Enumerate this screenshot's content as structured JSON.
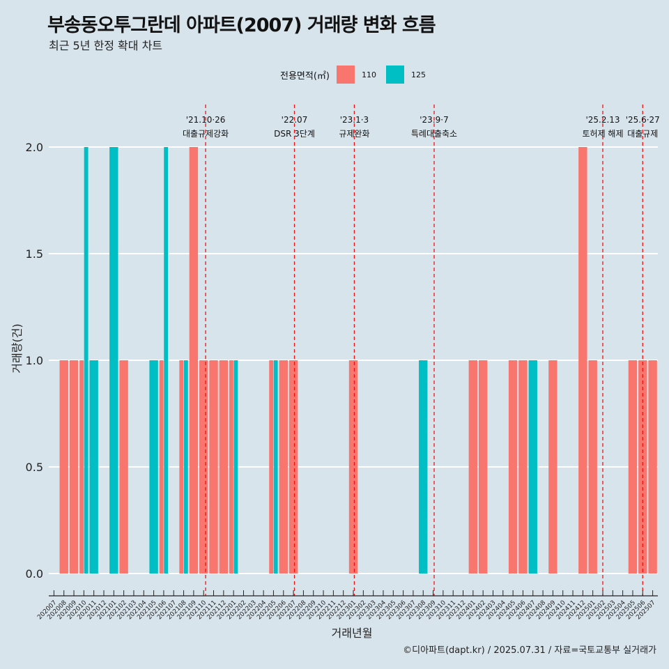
{
  "header": {
    "title": "부송동오투그란데 아파트(2007) 거래량 변화 흐름",
    "subtitle": "최근 5년 한정 확대 차트"
  },
  "legend": {
    "title": "전용면적(㎡)",
    "items": [
      {
        "label": "110",
        "color": "#f8766d"
      },
      {
        "label": "125",
        "color": "#00bfc4"
      }
    ]
  },
  "footer": {
    "credit": "©디아파트(dapt.kr) / 2025.07.31 / 자료=국토교통부 실거래가"
  },
  "chart_data": {
    "type": "bar",
    "title": "부송동오투그란데 아파트(2007) 거래량 변화 흐름",
    "xlabel": "거래년월",
    "ylabel": "거래량(건)",
    "ylim": [
      -0.18,
      2.2
    ],
    "yticks": [
      0.0,
      0.5,
      1.0,
      1.5,
      2.0
    ],
    "ytick_labels": [
      "0.0",
      "0.5",
      "1.0",
      "1.5",
      "2.0"
    ],
    "categories": [
      "202007",
      "202008",
      "202009",
      "202010",
      "202011",
      "202012",
      "202101",
      "202102",
      "202103",
      "202104",
      "202105",
      "202106",
      "202107",
      "202108",
      "202109",
      "202110",
      "202111",
      "202112",
      "202201",
      "202202",
      "202203",
      "202204",
      "202205",
      "202206",
      "202207",
      "202208",
      "202209",
      "202210",
      "202211",
      "202212",
      "202301",
      "202302",
      "202303",
      "202304",
      "202305",
      "202306",
      "202307",
      "202308",
      "202309",
      "202310",
      "202311",
      "202312",
      "202401",
      "202402",
      "202403",
      "202404",
      "202405",
      "202406",
      "202407",
      "202408",
      "202409",
      "202410",
      "202411",
      "202412",
      "202501",
      "202502",
      "202503",
      "202504",
      "202505",
      "202506",
      "202507"
    ],
    "bars": [
      {
        "month": "202008",
        "series": "110",
        "value": 1
      },
      {
        "month": "202009",
        "series": "110",
        "value": 1
      },
      {
        "month": "202010",
        "series": "110",
        "value": 1
      },
      {
        "month": "202010",
        "series": "125",
        "value": 2
      },
      {
        "month": "202011",
        "series": "125",
        "value": 1
      },
      {
        "month": "202101",
        "series": "125",
        "value": 2
      },
      {
        "month": "202102",
        "series": "110",
        "value": 1
      },
      {
        "month": "202105",
        "series": "125",
        "value": 1
      },
      {
        "month": "202106",
        "series": "110",
        "value": 1
      },
      {
        "month": "202106",
        "series": "125",
        "value": 2
      },
      {
        "month": "202108",
        "series": "110",
        "value": 1
      },
      {
        "month": "202108",
        "series": "125",
        "value": 1
      },
      {
        "month": "202109",
        "series": "110",
        "value": 2
      },
      {
        "month": "202110",
        "series": "110",
        "value": 1
      },
      {
        "month": "202111",
        "series": "110",
        "value": 1
      },
      {
        "month": "202112",
        "series": "110",
        "value": 1
      },
      {
        "month": "202201",
        "series": "110",
        "value": 1
      },
      {
        "month": "202201",
        "series": "125",
        "value": 1
      },
      {
        "month": "202205",
        "series": "110",
        "value": 1
      },
      {
        "month": "202205",
        "series": "125",
        "value": 1
      },
      {
        "month": "202206",
        "series": "110",
        "value": 1
      },
      {
        "month": "202207",
        "series": "110",
        "value": 1
      },
      {
        "month": "202301",
        "series": "110",
        "value": 1
      },
      {
        "month": "202308",
        "series": "125",
        "value": 1
      },
      {
        "month": "202401",
        "series": "110",
        "value": 1
      },
      {
        "month": "202402",
        "series": "110",
        "value": 1
      },
      {
        "month": "202405",
        "series": "110",
        "value": 1
      },
      {
        "month": "202406",
        "series": "110",
        "value": 1
      },
      {
        "month": "202407",
        "series": "125",
        "value": 1
      },
      {
        "month": "202409",
        "series": "110",
        "value": 1
      },
      {
        "month": "202412",
        "series": "110",
        "value": 2
      },
      {
        "month": "202501",
        "series": "110",
        "value": 1
      },
      {
        "month": "202505",
        "series": "110",
        "value": 1
      },
      {
        "month": "202506",
        "series": "110",
        "value": 1
      },
      {
        "month": "202507",
        "series": "110",
        "value": 1
      }
    ],
    "series_colors": {
      "110": "#f8766d",
      "125": "#00bfc4"
    },
    "events": [
      {
        "month_pos": 15.2,
        "date": "'21.10·26",
        "label": "대출규제강화"
      },
      {
        "month_pos": 24.1,
        "date": "'22.07",
        "label": "DSR 3단계"
      },
      {
        "month_pos": 30.1,
        "date": "'23.1·3",
        "label": "규제완화"
      },
      {
        "month_pos": 38.1,
        "date": "'23.9·7",
        "label": "특례대출축소"
      },
      {
        "month_pos": 55.0,
        "date": "'25.2.13",
        "label": "토허제 해제"
      },
      {
        "month_pos": 59.0,
        "date": "'25.6·27",
        "label": "대출규제"
      }
    ],
    "event_line_color": "#ee1111"
  }
}
